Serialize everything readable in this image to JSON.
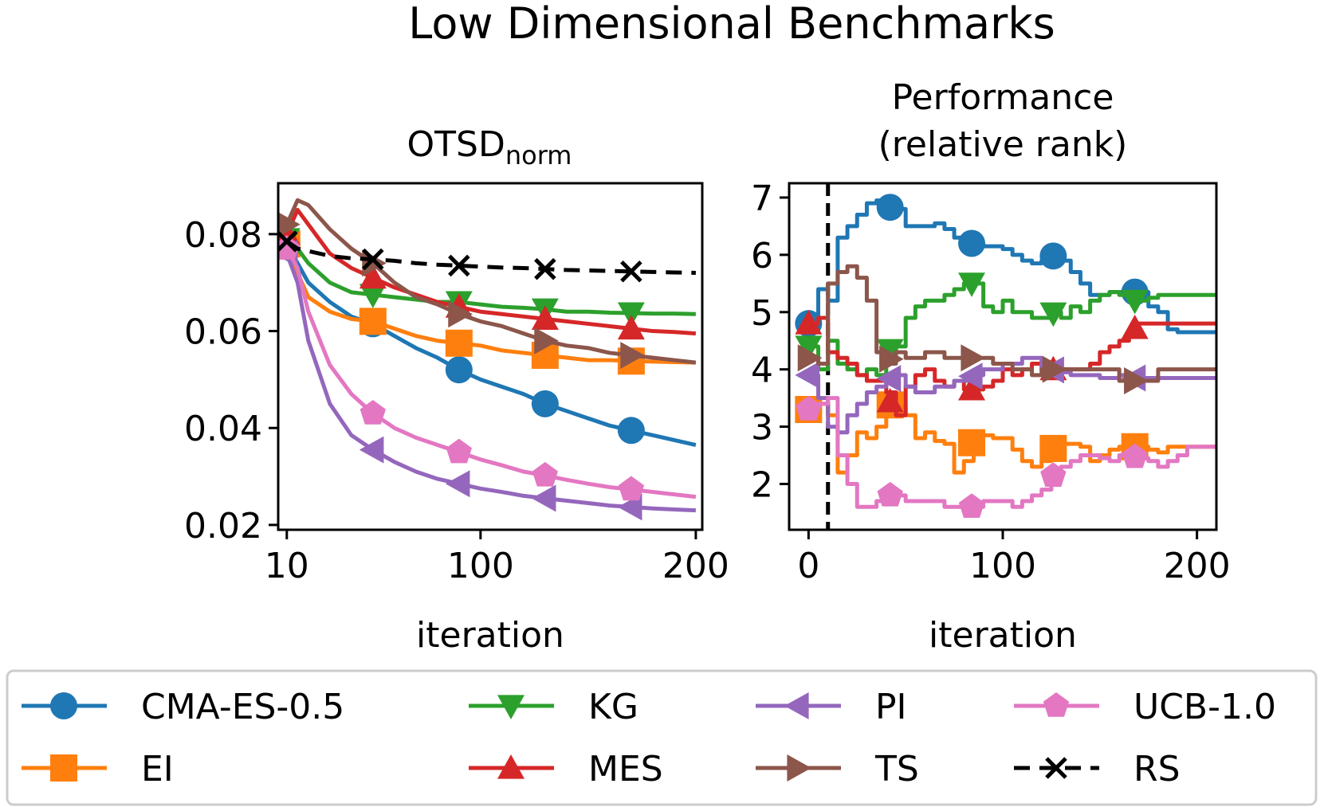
{
  "figure_title": "Low Dimensional Benchmarks",
  "colors": {
    "CMA-ES-0.5": "#1f77b4",
    "EI": "#ff7f0e",
    "KG": "#2ca02c",
    "MES": "#d62728",
    "PI": "#9467bd",
    "TS": "#8c564b",
    "UCB-1.0": "#e377c2",
    "RS": "#000000"
  },
  "legend": [
    {
      "label": "CMA-ES-0.5",
      "marker": "circle",
      "dashed": false
    },
    {
      "label": "KG",
      "marker": "triangle-down",
      "dashed": false
    },
    {
      "label": "PI",
      "marker": "triangle-left",
      "dashed": false
    },
    {
      "label": "UCB-1.0",
      "marker": "pentagon",
      "dashed": false
    },
    {
      "label": "EI",
      "marker": "square",
      "dashed": false
    },
    {
      "label": "MES",
      "marker": "triangle-up",
      "dashed": false
    },
    {
      "label": "TS",
      "marker": "triangle-right",
      "dashed": false
    },
    {
      "label": "RS",
      "marker": "x",
      "dashed": true
    }
  ],
  "chart_data": [
    {
      "type": "line",
      "title": "OTSD",
      "title_subscript": "norm",
      "xlabel": "iteration",
      "ylabel": "",
      "xlim": [
        6,
        203
      ],
      "ylim": [
        0.019,
        0.0905
      ],
      "xticks": [
        10,
        100,
        200
      ],
      "xtick_labels": [
        "10",
        "100",
        "200"
      ],
      "yticks": [
        0.02,
        0.04,
        0.06,
        0.08
      ],
      "ytick_labels": [
        "0.02",
        "0.04",
        "0.06",
        "0.08"
      ],
      "x": [
        10,
        15,
        20,
        30,
        40,
        50,
        60,
        70,
        80,
        90,
        100,
        110,
        120,
        130,
        140,
        150,
        160,
        170,
        180,
        190,
        200
      ],
      "marker_x": [
        10,
        50,
        90,
        130,
        170
      ],
      "series": [
        {
          "name": "CMA-ES-0.5",
          "values": [
            0.078,
            0.074,
            0.07,
            0.066,
            0.063,
            0.0615,
            0.059,
            0.0565,
            0.0545,
            0.052,
            0.05,
            0.0485,
            0.047,
            0.045,
            0.0435,
            0.042,
            0.0405,
            0.0395,
            0.0385,
            0.0375,
            0.0365
          ]
        },
        {
          "name": "EI",
          "values": [
            0.078,
            0.072,
            0.067,
            0.064,
            0.0625,
            0.062,
            0.0605,
            0.059,
            0.058,
            0.0575,
            0.057,
            0.056,
            0.0555,
            0.055,
            0.0545,
            0.054,
            0.054,
            0.0538,
            0.0537,
            0.0536,
            0.0535
          ]
        },
        {
          "name": "KG",
          "values": [
            0.079,
            0.077,
            0.074,
            0.07,
            0.068,
            0.0675,
            0.067,
            0.0665,
            0.066,
            0.066,
            0.0655,
            0.065,
            0.0648,
            0.0645,
            0.064,
            0.064,
            0.0638,
            0.0637,
            0.0636,
            0.0636,
            0.0635
          ]
        },
        {
          "name": "MES",
          "values": [
            0.08,
            0.085,
            0.082,
            0.076,
            0.073,
            0.071,
            0.069,
            0.0675,
            0.066,
            0.065,
            0.064,
            0.0635,
            0.063,
            0.0625,
            0.062,
            0.0615,
            0.061,
            0.0605,
            0.06,
            0.0598,
            0.0595
          ]
        },
        {
          "name": "PI",
          "values": [
            0.076,
            0.07,
            0.058,
            0.045,
            0.0385,
            0.0355,
            0.033,
            0.031,
            0.0295,
            0.0285,
            0.0275,
            0.0268,
            0.026,
            0.0255,
            0.025,
            0.0245,
            0.024,
            0.0237,
            0.0234,
            0.0232,
            0.023
          ]
        },
        {
          "name": "TS",
          "values": [
            0.082,
            0.087,
            0.086,
            0.081,
            0.077,
            0.074,
            0.07,
            0.067,
            0.0655,
            0.0635,
            0.062,
            0.061,
            0.0595,
            0.058,
            0.057,
            0.0565,
            0.0555,
            0.055,
            0.0545,
            0.054,
            0.0535
          ]
        },
        {
          "name": "UCB-1.0",
          "values": [
            0.077,
            0.073,
            0.064,
            0.053,
            0.047,
            0.043,
            0.04,
            0.038,
            0.0365,
            0.035,
            0.0335,
            0.0323,
            0.031,
            0.0302,
            0.0293,
            0.0285,
            0.0278,
            0.0273,
            0.0268,
            0.0263,
            0.0258
          ]
        },
        {
          "name": "RS",
          "values": [
            0.0785,
            0.077,
            0.0765,
            0.0755,
            0.075,
            0.0748,
            0.0745,
            0.074,
            0.0737,
            0.0735,
            0.0733,
            0.0731,
            0.073,
            0.0728,
            0.0726,
            0.0725,
            0.0724,
            0.0723,
            0.0722,
            0.0721,
            0.072
          ]
        }
      ]
    },
    {
      "type": "line",
      "title": "Performance",
      "title_line2": "(relative rank)",
      "xlabel": "iteration",
      "ylabel": "",
      "xlim": [
        -10,
        210
      ],
      "ylim": [
        1.2,
        7.25
      ],
      "xticks": [
        0,
        100,
        200
      ],
      "xtick_labels": [
        "0",
        "100",
        "200"
      ],
      "yticks": [
        2,
        3,
        4,
        5,
        6,
        7
      ],
      "ytick_labels": [
        "2",
        "3",
        "4",
        "5",
        "6",
        "7"
      ],
      "vline_x": 10,
      "x": [
        0,
        5,
        10,
        15,
        20,
        25,
        30,
        35,
        40,
        45,
        50,
        55,
        60,
        65,
        70,
        75,
        80,
        85,
        90,
        95,
        100,
        105,
        110,
        115,
        120,
        125,
        130,
        135,
        140,
        145,
        150,
        155,
        160,
        165,
        170,
        175,
        180,
        185,
        190,
        195,
        200,
        205,
        210
      ],
      "marker_x": [
        0,
        42,
        84,
        126,
        168
      ],
      "series": [
        {
          "name": "CMA-ES-0.5",
          "values": [
            4.8,
            5.4,
            5.2,
            6.3,
            6.5,
            6.7,
            6.9,
            6.95,
            6.85,
            6.8,
            6.5,
            6.5,
            6.5,
            6.55,
            6.45,
            6.3,
            6.2,
            6.2,
            6.15,
            6.15,
            6.1,
            6.0,
            5.9,
            5.85,
            5.9,
            6.0,
            5.9,
            5.7,
            5.5,
            5.3,
            5.3,
            5.35,
            5.35,
            5.35,
            5.35,
            5.1,
            5.0,
            4.7,
            4.65,
            4.65,
            4.65,
            4.65,
            4.65
          ]
        },
        {
          "name": "EI",
          "values": [
            3.3,
            3.4,
            3.2,
            2.2,
            2.5,
            2.9,
            2.8,
            3.0,
            3.4,
            3.35,
            3.2,
            2.8,
            2.9,
            2.75,
            2.7,
            2.2,
            2.4,
            2.8,
            2.85,
            2.8,
            2.8,
            2.6,
            2.4,
            2.3,
            2.4,
            2.6,
            2.7,
            2.7,
            2.65,
            2.4,
            2.5,
            2.6,
            2.65,
            2.65,
            2.65,
            2.6,
            2.55,
            2.65,
            2.65,
            2.65,
            2.65,
            2.65,
            2.65
          ]
        },
        {
          "name": "KG",
          "values": [
            4.4,
            4.0,
            4.5,
            4.1,
            4.0,
            3.9,
            4.0,
            3.9,
            4.3,
            4.4,
            4.9,
            5.1,
            5.2,
            5.2,
            5.3,
            5.4,
            5.5,
            5.5,
            5.1,
            5.0,
            5.2,
            5.0,
            5.0,
            4.9,
            4.9,
            5.0,
            4.9,
            5.1,
            5.0,
            5.2,
            5.3,
            5.35,
            5.3,
            5.2,
            5.2,
            5.25,
            5.3,
            5.3,
            5.3,
            5.3,
            5.3,
            5.3,
            5.3
          ]
        },
        {
          "name": "MES",
          "values": [
            4.8,
            4.9,
            4.3,
            4.2,
            4.1,
            3.9,
            3.8,
            3.8,
            3.6,
            3.2,
            3.7,
            3.9,
            4.0,
            3.8,
            3.7,
            3.8,
            3.65,
            3.65,
            3.7,
            3.8,
            4.0,
            3.9,
            4.0,
            4.1,
            4.0,
            4.0,
            4.0,
            4.0,
            4.0,
            4.1,
            4.3,
            4.4,
            4.5,
            4.6,
            4.8,
            4.8,
            4.8,
            4.8,
            4.8,
            4.8,
            4.8,
            4.8,
            4.8
          ]
        },
        {
          "name": "PI",
          "values": [
            3.9,
            3.5,
            3.0,
            2.9,
            3.2,
            3.4,
            3.6,
            3.7,
            3.8,
            3.9,
            3.7,
            3.6,
            3.6,
            3.7,
            3.7,
            3.8,
            3.8,
            3.9,
            4.0,
            4.0,
            4.1,
            4.1,
            4.2,
            4.2,
            4.0,
            4.0,
            3.95,
            3.9,
            3.9,
            3.9,
            3.85,
            3.85,
            3.9,
            3.85,
            3.85,
            3.85,
            3.85,
            3.85,
            3.85,
            3.85,
            3.85,
            3.85,
            3.85
          ]
        },
        {
          "name": "TS",
          "values": [
            4.2,
            4.1,
            5.5,
            5.7,
            5.8,
            5.6,
            5.2,
            4.3,
            4.1,
            4.3,
            4.2,
            4.2,
            4.3,
            4.3,
            4.2,
            4.2,
            4.2,
            4.2,
            4.2,
            4.1,
            4.1,
            4.0,
            4.0,
            3.9,
            4.0,
            4.0,
            4.0,
            4.0,
            4.0,
            4.0,
            4.0,
            4.0,
            3.8,
            3.8,
            3.8,
            3.8,
            4.0,
            4.0,
            4.0,
            4.0,
            4.0,
            4.0,
            4.0
          ]
        },
        {
          "name": "UCB-1.0",
          "values": [
            3.3,
            3.4,
            3.5,
            2.5,
            2.0,
            1.6,
            1.6,
            1.7,
            1.8,
            1.8,
            1.7,
            1.7,
            1.7,
            1.7,
            1.6,
            1.6,
            1.6,
            1.6,
            1.7,
            1.7,
            1.7,
            1.6,
            1.7,
            1.8,
            1.9,
            2.1,
            2.3,
            2.4,
            2.5,
            2.5,
            2.45,
            2.4,
            2.5,
            2.5,
            2.45,
            2.4,
            2.3,
            2.4,
            2.5,
            2.65,
            2.65,
            2.65,
            2.65
          ]
        }
      ]
    }
  ]
}
